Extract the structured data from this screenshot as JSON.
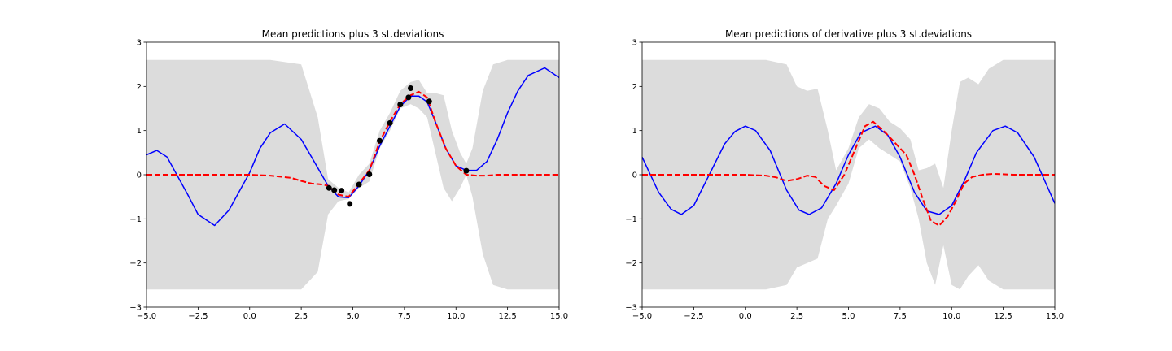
{
  "chart_data": [
    {
      "type": "line",
      "title": "Mean predictions plus 3 st.deviations",
      "xlabel": "",
      "ylabel": "",
      "xlim": [
        -5,
        15
      ],
      "ylim": [
        -3,
        3
      ],
      "xticks": [
        -5,
        -2.5,
        0,
        2.5,
        5,
        7.5,
        10,
        12.5,
        15
      ],
      "xtick_labels": [
        "−5.0",
        "−2.5",
        "0.0",
        "2.5",
        "5.0",
        "7.5",
        "10.0",
        "12.5",
        "15.0"
      ],
      "yticks": [
        -3,
        -2,
        -1,
        0,
        1,
        2,
        3
      ],
      "ytick_labels": [
        "−3",
        "−2",
        "−1",
        "0",
        "1",
        "2",
        "3"
      ],
      "grid": false,
      "series": [
        {
          "kind": "band",
          "color": "#dcdcdc",
          "x": [
            -5,
            -3,
            -1,
            1,
            2.5,
            3.3,
            3.8,
            4.3,
            4.8,
            5.3,
            5.8,
            6.3,
            6.8,
            7.3,
            7.8,
            8.2,
            8.6,
            9.0,
            9.4,
            9.8,
            10.2,
            10.5,
            10.8,
            11.3,
            11.8,
            12.5,
            13.5,
            15
          ],
          "upper": [
            2.6,
            2.6,
            2.6,
            2.6,
            2.5,
            1.3,
            -0.1,
            -0.3,
            -0.4,
            0.0,
            0.25,
            1.0,
            1.4,
            1.9,
            2.1,
            2.15,
            1.85,
            1.85,
            1.8,
            1.0,
            0.5,
            0.25,
            0.6,
            1.9,
            2.5,
            2.6,
            2.6,
            2.6
          ],
          "lower": [
            -2.6,
            -2.6,
            -2.6,
            -2.6,
            -2.6,
            -2.2,
            -0.9,
            -0.6,
            -0.55,
            -0.3,
            -0.15,
            0.6,
            1.0,
            1.5,
            1.6,
            1.5,
            1.3,
            0.5,
            -0.3,
            -0.6,
            -0.3,
            0.0,
            -0.5,
            -1.8,
            -2.5,
            -2.6,
            -2.6,
            -2.6
          ]
        },
        {
          "kind": "line",
          "style": "solid",
          "color": "#0000ff",
          "x": [
            -5,
            -4.5,
            -4,
            -3,
            -2.5,
            -1.7,
            -1,
            0,
            0.5,
            1,
            1.7,
            2.5,
            3,
            3.8,
            4.3,
            4.8,
            5.3,
            5.8,
            6.3,
            6.8,
            7.3,
            7.8,
            8.2,
            8.6,
            9.0,
            9.5,
            10.0,
            10.5,
            11.0,
            11.5,
            12,
            12.5,
            13,
            13.5,
            14.3,
            15
          ],
          "y": [
            0.45,
            0.55,
            0.4,
            -0.45,
            -0.9,
            -1.15,
            -0.8,
            0.05,
            0.6,
            0.95,
            1.15,
            0.8,
            0.4,
            -0.25,
            -0.5,
            -0.52,
            -0.25,
            0.1,
            0.65,
            1.1,
            1.55,
            1.78,
            1.78,
            1.65,
            1.2,
            0.6,
            0.2,
            0.1,
            0.1,
            0.3,
            0.8,
            1.4,
            1.9,
            2.25,
            2.42,
            2.2
          ]
        },
        {
          "kind": "line",
          "style": "dashed",
          "color": "#ff0000",
          "x": [
            -5,
            -2,
            0,
            1,
            2,
            2.5,
            3,
            3.5,
            3.8,
            4.3,
            4.8,
            5.3,
            5.8,
            6.3,
            6.8,
            7.3,
            7.8,
            8.2,
            8.6,
            9.0,
            9.5,
            10.0,
            10.5,
            11.0,
            11.5,
            12,
            13,
            15
          ],
          "y": [
            0,
            0,
            0,
            -0.02,
            -0.07,
            -0.14,
            -0.2,
            -0.22,
            -0.25,
            -0.45,
            -0.5,
            -0.2,
            0.1,
            0.75,
            1.2,
            1.6,
            1.8,
            1.88,
            1.75,
            1.2,
            0.6,
            0.2,
            0.0,
            -0.02,
            -0.02,
            0,
            0,
            0
          ]
        },
        {
          "kind": "points",
          "color": "#000000",
          "x": [
            3.85,
            4.1,
            4.45,
            4.85,
            5.3,
            5.8,
            6.3,
            6.8,
            7.3,
            7.7,
            7.8,
            8.7,
            10.5
          ],
          "y": [
            -0.3,
            -0.35,
            -0.36,
            -0.66,
            -0.22,
            0.01,
            0.77,
            1.17,
            1.59,
            1.75,
            1.96,
            1.66,
            0.09
          ]
        }
      ]
    },
    {
      "type": "line",
      "title": "Mean predictions of derivative plus 3 st.deviations",
      "xlabel": "",
      "ylabel": "",
      "xlim": [
        -5,
        15
      ],
      "ylim": [
        -3,
        3
      ],
      "xticks": [
        -5,
        -2.5,
        0,
        2.5,
        5,
        7.5,
        10,
        12.5,
        15
      ],
      "xtick_labels": [
        "−5.0",
        "−2.5",
        "0.0",
        "2.5",
        "5.0",
        "7.5",
        "10.0",
        "12.5",
        "15.0"
      ],
      "yticks": [
        -3,
        -2,
        -1,
        0,
        1,
        2,
        3
      ],
      "ytick_labels": [
        "−3",
        "−2",
        "−1",
        "0",
        "1",
        "2",
        "3"
      ],
      "grid": false,
      "series": [
        {
          "kind": "band",
          "color": "#dcdcdc",
          "x": [
            -5,
            -1,
            1,
            2,
            2.5,
            3.0,
            3.5,
            4.0,
            4.4,
            5.0,
            5.5,
            6.0,
            6.5,
            7.0,
            7.5,
            8.0,
            8.4,
            8.8,
            9.2,
            9.6,
            10.0,
            10.4,
            10.8,
            11.3,
            11.8,
            12.5,
            13.5,
            15
          ],
          "upper": [
            2.6,
            2.6,
            2.6,
            2.5,
            2.0,
            1.9,
            1.95,
            1.0,
            0.1,
            0.6,
            1.3,
            1.6,
            1.5,
            1.2,
            1.05,
            0.8,
            0.1,
            0.15,
            0.25,
            -0.3,
            1.0,
            2.1,
            2.2,
            2.05,
            2.4,
            2.6,
            2.6,
            2.6
          ],
          "lower": [
            -2.6,
            -2.6,
            -2.6,
            -2.5,
            -2.1,
            -2.0,
            -1.9,
            -1.0,
            -0.7,
            -0.2,
            0.6,
            0.8,
            0.6,
            0.45,
            0.3,
            -0.3,
            -1.0,
            -2.0,
            -2.5,
            -1.6,
            -2.5,
            -2.6,
            -2.3,
            -2.05,
            -2.4,
            -2.6,
            -2.6,
            -2.6
          ]
        },
        {
          "kind": "line",
          "style": "solid",
          "color": "#0000ff",
          "x": [
            -5,
            -4.2,
            -3.6,
            -3.1,
            -2.5,
            -1.8,
            -1,
            -0.5,
            0,
            0.5,
            1.2,
            2,
            2.6,
            3.1,
            3.7,
            4.4,
            5.0,
            5.6,
            6.3,
            6.9,
            7.5,
            8.2,
            8.8,
            9.4,
            10.0,
            10.6,
            11.2,
            12.0,
            12.6,
            13.2,
            14.0,
            15
          ],
          "y": [
            0.4,
            -0.4,
            -0.78,
            -0.9,
            -0.7,
            -0.05,
            0.7,
            0.98,
            1.1,
            1.0,
            0.55,
            -0.35,
            -0.8,
            -0.9,
            -0.75,
            -0.2,
            0.45,
            0.95,
            1.1,
            0.9,
            0.4,
            -0.4,
            -0.82,
            -0.9,
            -0.7,
            -0.15,
            0.5,
            1.0,
            1.1,
            0.95,
            0.4,
            -0.65
          ]
        },
        {
          "kind": "line",
          "style": "dashed",
          "color": "#ff0000",
          "x": [
            -5,
            -2,
            0,
            1,
            1.5,
            2,
            2.5,
            3,
            3.4,
            3.8,
            4.3,
            4.8,
            5.3,
            5.8,
            6.2,
            6.8,
            7.3,
            7.8,
            8.2,
            8.6,
            9.0,
            9.4,
            9.8,
            10.2,
            10.6,
            11.0,
            11.5,
            12,
            13,
            15
          ],
          "y": [
            0,
            0,
            0,
            -0.02,
            -0.06,
            -0.14,
            -0.1,
            -0.02,
            -0.05,
            -0.25,
            -0.35,
            0.0,
            0.55,
            1.1,
            1.2,
            0.95,
            0.7,
            0.45,
            0.0,
            -0.55,
            -1.05,
            -1.15,
            -0.95,
            -0.6,
            -0.2,
            -0.05,
            0.0,
            0.02,
            0.0,
            0.0
          ]
        }
      ]
    }
  ]
}
